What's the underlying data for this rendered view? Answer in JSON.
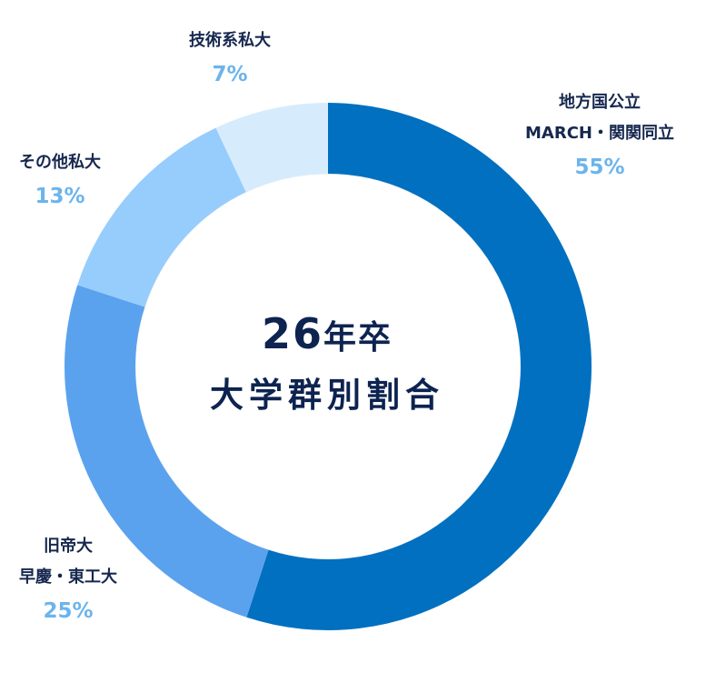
{
  "center": {
    "line1_num": "26",
    "line1_text": "年卒",
    "line2": "大学群別割合"
  },
  "colors": {
    "inner_ring": "#ececf1",
    "label_text": "#16284f",
    "percent_text": "#6cb4ec",
    "center_text": "#0d2350"
  },
  "chart_data": {
    "type": "pie",
    "variant": "donut",
    "title": "",
    "slices": [
      {
        "label_lines": [
          "地方国公立",
          "MARCH・関関同立"
        ],
        "value": 55,
        "value_label": "55%",
        "color": "#0170c0"
      },
      {
        "label_lines": [
          "旧帝大",
          "早慶・東工大"
        ],
        "value": 25,
        "value_label": "25%",
        "color": "#5aa2ee"
      },
      {
        "label_lines": [
          "その他私大"
        ],
        "value": 13,
        "value_label": "13%",
        "color": "#96cdfc"
      },
      {
        "label_lines": [
          "技術系私大"
        ],
        "value": 7,
        "value_label": "7%",
        "color": "#d6ecfd"
      }
    ]
  }
}
